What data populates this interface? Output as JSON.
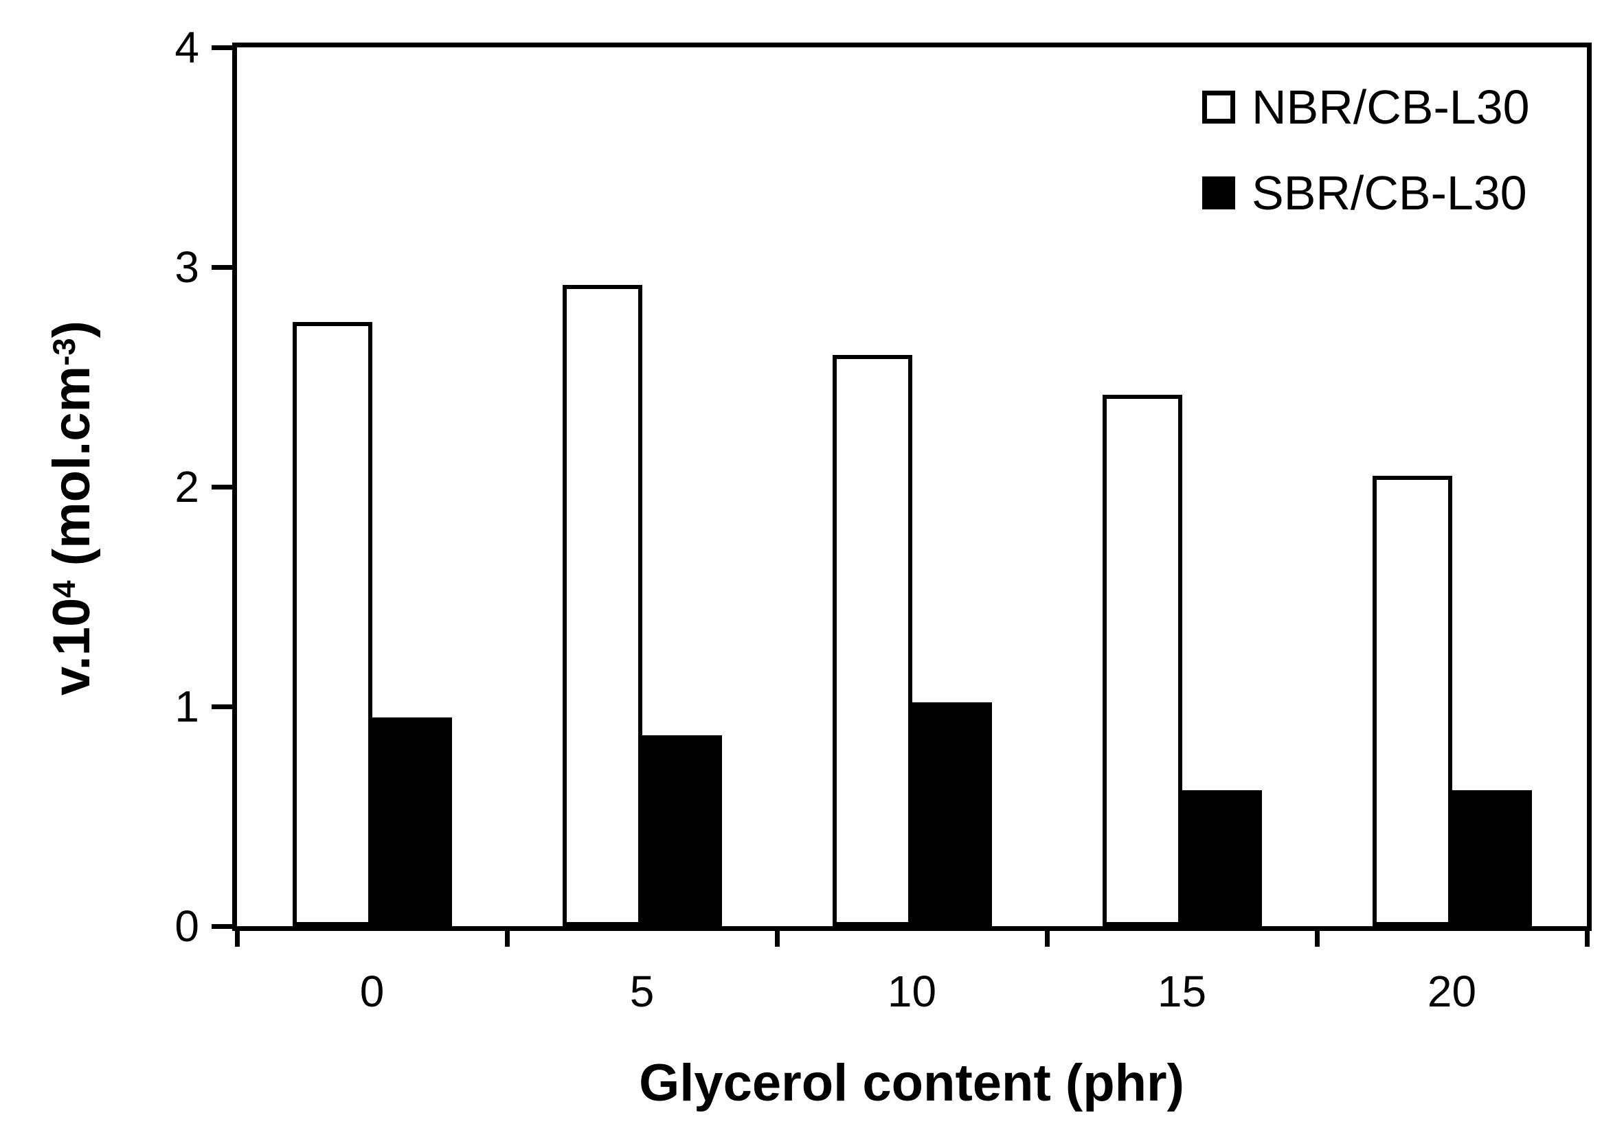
{
  "chart_data": {
    "type": "bar",
    "title": "",
    "categories": [
      "0",
      "5",
      "10",
      "15",
      "20"
    ],
    "series": [
      {
        "name": "NBR/CB-L30",
        "fill": "#ffffff",
        "values": [
          2.75,
          2.92,
          2.6,
          2.42,
          2.05
        ]
      },
      {
        "name": "SBR/CB-L30",
        "fill": "#000000",
        "values": [
          0.95,
          0.87,
          1.02,
          0.62,
          0.62
        ]
      }
    ],
    "xlabel": "Glycerol content (phr)",
    "ylabel": "v.10⁴ (mol.cm⁻³)",
    "ylabel_parts": {
      "prefix": "v.10",
      "sup1": "4",
      "mid": " (mol.cm",
      "sup2": "-3",
      "suffix": ")"
    },
    "ylim": [
      0,
      4
    ],
    "yticks": [
      "0",
      "1",
      "2",
      "3",
      "4"
    ],
    "grid": false,
    "legend_position": "top-right-inside",
    "bar_outline_color": "#000000",
    "axis_color": "#000000",
    "background_color": "#ffffff"
  }
}
